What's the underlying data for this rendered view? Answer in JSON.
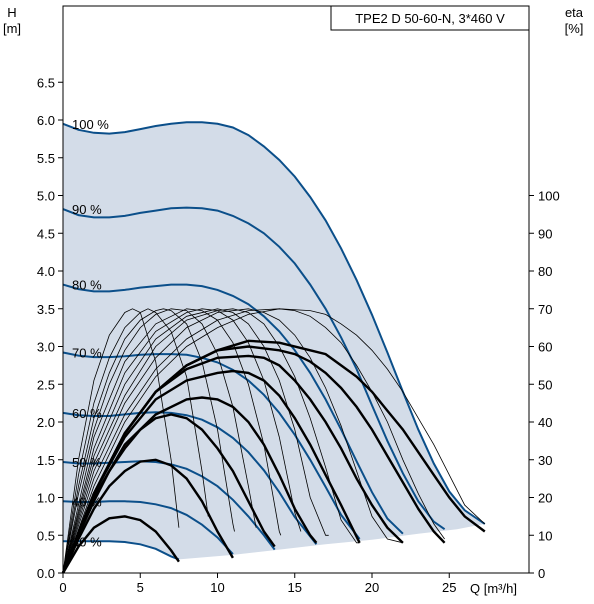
{
  "chart_data": {
    "type": "line",
    "title": "TPE2 D 50-60-N, 3*460 V",
    "xlabel": "Q [m³/h]",
    "ylabel_left_top": "H",
    "ylabel_left_unit": "[m]",
    "ylabel_right_top": "eta",
    "ylabel_right_unit": "[%]",
    "xlim": [
      0,
      30
    ],
    "ylim_left": [
      0,
      7.0
    ],
    "ylim_right": [
      0,
      140
    ],
    "x_ticks": [
      0,
      5,
      10,
      15,
      20,
      25
    ],
    "x_tick_labels": [
      "0",
      "5",
      "10",
      "15",
      "20",
      "25"
    ],
    "y_ticks_left": [
      0.0,
      0.5,
      1.0,
      1.5,
      2.0,
      2.5,
      3.0,
      3.5,
      4.0,
      4.5,
      5.0,
      5.5,
      6.0,
      6.5
    ],
    "y_tick_labels_left": [
      "0.0",
      "0.5",
      "1.0",
      "1.5",
      "2.0",
      "2.5",
      "3.0",
      "3.5",
      "4.0",
      "4.5",
      "5.0",
      "5.5",
      "6.0",
      "6.5"
    ],
    "y_ticks_right": [
      0,
      10,
      20,
      30,
      40,
      50,
      60,
      70,
      80,
      90,
      100
    ],
    "y_tick_labels_right": [
      "0",
      "10",
      "20",
      "30",
      "40",
      "50",
      "60",
      "70",
      "80",
      "90",
      "100"
    ],
    "grid": false,
    "colors": {
      "pump_curve": "#0b4f8a",
      "operating_area": "#d3dce8",
      "efficiency": "#000000",
      "frame": "#000000"
    },
    "operating_area_bottom": {
      "x": [
        7.5,
        11,
        14,
        17,
        20,
        23,
        25.5,
        27.3
      ],
      "y": [
        0.18,
        0.24,
        0.31,
        0.38,
        0.44,
        0.52,
        0.58,
        0.65
      ]
    },
    "pump_curves": [
      {
        "label": "100 %",
        "x": [
          0,
          1,
          2,
          3,
          4,
          5,
          6,
          7,
          8,
          9,
          10,
          11,
          12,
          13,
          14,
          15,
          16,
          17,
          18,
          19,
          20,
          21,
          22,
          23,
          24,
          25,
          26,
          27.3
        ],
        "y": [
          5.95,
          5.87,
          5.83,
          5.82,
          5.84,
          5.88,
          5.92,
          5.95,
          5.97,
          5.97,
          5.95,
          5.9,
          5.8,
          5.65,
          5.47,
          5.25,
          4.98,
          4.67,
          4.3,
          3.88,
          3.42,
          2.92,
          2.4,
          1.9,
          1.45,
          1.08,
          0.83,
          0.65
        ]
      },
      {
        "label": "90 %",
        "x": [
          0,
          1,
          2,
          3,
          4,
          5,
          6,
          7,
          8,
          9,
          10,
          11,
          12,
          13,
          14,
          15,
          16,
          17,
          18,
          19,
          20,
          21,
          22,
          23,
          24,
          24.7
        ],
        "y": [
          4.82,
          4.74,
          4.71,
          4.71,
          4.73,
          4.77,
          4.8,
          4.83,
          4.84,
          4.83,
          4.8,
          4.73,
          4.63,
          4.5,
          4.32,
          4.1,
          3.82,
          3.5,
          3.12,
          2.7,
          2.22,
          1.75,
          1.32,
          0.95,
          0.68,
          0.58
        ]
      },
      {
        "label": "80 %",
        "x": [
          0,
          1,
          2,
          3,
          4,
          5,
          6,
          7,
          8,
          9,
          10,
          11,
          12,
          13,
          14,
          15,
          16,
          17,
          18,
          19,
          20,
          21,
          22
        ],
        "y": [
          3.82,
          3.76,
          3.73,
          3.73,
          3.75,
          3.78,
          3.8,
          3.82,
          3.82,
          3.8,
          3.75,
          3.67,
          3.56,
          3.4,
          3.2,
          2.95,
          2.65,
          2.3,
          1.9,
          1.48,
          1.07,
          0.72,
          0.52
        ]
      },
      {
        "label": "70 %",
        "x": [
          0,
          1,
          2,
          3,
          4,
          5,
          6,
          7,
          8,
          9,
          10,
          11,
          12,
          13,
          14,
          15,
          16,
          17,
          18,
          19.2
        ],
        "y": [
          2.92,
          2.88,
          2.86,
          2.86,
          2.87,
          2.89,
          2.9,
          2.9,
          2.89,
          2.85,
          2.79,
          2.69,
          2.55,
          2.36,
          2.12,
          1.83,
          1.5,
          1.14,
          0.77,
          0.45
        ]
      },
      {
        "label": "60 %",
        "x": [
          0,
          1,
          2,
          3,
          4,
          5,
          6,
          7,
          8,
          9,
          10,
          11,
          12,
          13,
          14,
          15,
          16.4
        ],
        "y": [
          2.12,
          2.09,
          2.08,
          2.08,
          2.1,
          2.12,
          2.13,
          2.12,
          2.09,
          2.03,
          1.93,
          1.79,
          1.6,
          1.36,
          1.07,
          0.74,
          0.38
        ]
      },
      {
        "label": "50 %",
        "x": [
          0,
          1,
          2,
          3,
          4,
          5,
          6,
          7,
          8,
          9,
          10,
          11,
          12,
          13,
          13.7
        ],
        "y": [
          1.47,
          1.45,
          1.45,
          1.46,
          1.47,
          1.48,
          1.47,
          1.44,
          1.38,
          1.28,
          1.15,
          0.97,
          0.75,
          0.5,
          0.31
        ]
      },
      {
        "label": "40 %",
        "x": [
          0,
          1,
          2,
          3,
          4,
          5,
          6,
          7,
          8,
          9,
          10,
          11
        ],
        "y": [
          0.95,
          0.94,
          0.94,
          0.95,
          0.95,
          0.94,
          0.91,
          0.86,
          0.77,
          0.64,
          0.47,
          0.25
        ]
      },
      {
        "label": "30 %",
        "x": [
          0,
          1,
          2,
          3,
          4,
          5,
          6,
          7,
          7.5
        ],
        "y": [
          0.42,
          0.42,
          0.42,
          0.42,
          0.41,
          0.38,
          0.32,
          0.22,
          0.18
        ]
      }
    ],
    "efficiency_curves_thin": [
      {
        "x": [
          0,
          1,
          2,
          3,
          4,
          4.5,
          5,
          6,
          7,
          7.5
        ],
        "y": [
          0,
          30,
          51,
          63,
          69,
          70,
          69,
          56,
          30,
          12
        ]
      },
      {
        "x": [
          0,
          1,
          2,
          3,
          4,
          5,
          5.5,
          6,
          7,
          8,
          9,
          9.4
        ],
        "y": [
          0,
          26,
          45,
          57,
          65,
          69,
          70,
          69,
          64,
          52,
          27,
          15
        ]
      },
      {
        "x": [
          0,
          1,
          2,
          3,
          4,
          5,
          6,
          6.5,
          7,
          8,
          9,
          10,
          11,
          11.1
        ],
        "y": [
          0,
          23,
          41,
          53,
          62,
          67,
          69.5,
          70,
          69.5,
          66,
          56,
          38,
          13,
          11
        ]
      },
      {
        "x": [
          0,
          1,
          2,
          3,
          4,
          5,
          6,
          7,
          8,
          9,
          10,
          11,
          12,
          12.5
        ],
        "y": [
          0,
          21,
          38,
          50,
          59,
          65,
          68.5,
          70,
          69.5,
          66,
          58,
          44,
          23,
          12
        ]
      },
      {
        "x": [
          0,
          2,
          4,
          6,
          8,
          9,
          10,
          11,
          12,
          13,
          14,
          14.1
        ],
        "y": [
          0,
          36,
          56,
          66,
          70,
          69.5,
          67,
          61,
          50,
          34,
          11,
          10
        ]
      },
      {
        "x": [
          0,
          2,
          4,
          6,
          8,
          9,
          10,
          11,
          12,
          13,
          14,
          15,
          15.4
        ],
        "y": [
          0,
          33,
          53,
          64,
          69,
          70,
          69.5,
          67,
          61,
          51,
          36,
          16,
          11
        ]
      },
      {
        "x": [
          0,
          2,
          4,
          6,
          8,
          10,
          11,
          12,
          13,
          14,
          15,
          16,
          17,
          17.2
        ],
        "y": [
          0,
          31,
          50,
          62,
          68,
          70,
          69,
          66,
          60,
          51,
          38,
          20,
          10,
          10
        ]
      },
      {
        "x": [
          0,
          2,
          4,
          6,
          8,
          10,
          11,
          12,
          13,
          14,
          15,
          16,
          17,
          18,
          19,
          19.2
        ],
        "y": [
          0,
          29,
          47,
          60,
          67,
          69.5,
          70,
          69,
          66,
          60,
          52,
          41,
          28,
          14,
          8,
          8
        ]
      },
      {
        "x": [
          0,
          2,
          4,
          6,
          8,
          10,
          12,
          13,
          14,
          15,
          16,
          17,
          18,
          19,
          20,
          21,
          22
        ],
        "y": [
          0,
          27,
          45,
          57,
          65,
          69,
          70,
          69,
          67,
          63,
          57,
          49,
          39,
          27,
          15,
          9,
          8
        ]
      },
      {
        "x": [
          0,
          2,
          4,
          6,
          8,
          10,
          12,
          14,
          15,
          16,
          17,
          18,
          19,
          20,
          21,
          22,
          23,
          24,
          24.7
        ],
        "y": [
          0,
          25,
          42,
          54,
          62,
          67,
          69.5,
          70,
          69.5,
          68,
          65,
          61,
          55,
          48,
          40,
          30,
          21,
          13,
          9
        ]
      },
      {
        "x": [
          0,
          2,
          4,
          6,
          8,
          10,
          12,
          14,
          16,
          17,
          18,
          19,
          20,
          21,
          22,
          23,
          24,
          25,
          26,
          27.3
        ],
        "y": [
          0,
          23,
          40,
          52,
          60,
          65,
          68.5,
          70,
          69.5,
          68.5,
          66,
          63,
          59,
          54,
          48,
          41,
          34,
          26,
          18,
          13
        ]
      }
    ],
    "efficiency_curves_bold": [
      {
        "x": [
          0,
          1,
          2,
          3,
          4,
          5,
          6,
          7,
          7.5
        ],
        "y": [
          0,
          7,
          12,
          14.5,
          15,
          14,
          11,
          6,
          3
        ]
      },
      {
        "x": [
          0,
          1,
          2,
          3,
          4,
          5,
          6,
          7,
          8,
          9,
          10,
          11
        ],
        "y": [
          0,
          9,
          17,
          23,
          27,
          29.5,
          30,
          28.5,
          25,
          19,
          11,
          4
        ]
      },
      {
        "x": [
          0,
          1,
          2,
          3,
          4,
          5,
          6,
          7,
          8,
          9,
          10,
          11,
          12,
          13,
          13.7
        ],
        "y": [
          0,
          10,
          19,
          27,
          33,
          38,
          41,
          42,
          41,
          38,
          33,
          27,
          19,
          11,
          7
        ]
      },
      {
        "x": [
          0,
          2,
          4,
          6,
          8,
          9,
          10,
          11,
          12,
          13,
          14,
          15,
          16,
          16.4
        ],
        "y": [
          0,
          20,
          34,
          42,
          46,
          46.5,
          46,
          44,
          40,
          34,
          26,
          17,
          10,
          8
        ]
      },
      {
        "x": [
          0,
          2,
          4,
          6,
          8,
          10,
          11,
          12,
          13,
          14,
          15,
          16,
          17,
          18,
          19.2
        ],
        "y": [
          0,
          21,
          36,
          46,
          51,
          53,
          53.5,
          53,
          51,
          47,
          41,
          34,
          26,
          18,
          8
        ]
      },
      {
        "x": [
          0,
          2,
          4,
          6,
          8,
          10,
          12,
          13,
          14,
          15,
          16,
          17,
          18,
          19,
          20,
          21,
          22
        ],
        "y": [
          0,
          21,
          37,
          48,
          54,
          57,
          57.5,
          57,
          55,
          51,
          46,
          40,
          33,
          25,
          18,
          12,
          8
        ]
      },
      {
        "x": [
          0,
          2,
          4,
          6,
          8,
          10,
          12,
          14,
          15,
          16,
          17,
          18,
          19,
          20,
          21,
          22,
          23,
          24,
          24.7
        ],
        "y": [
          0,
          21,
          37,
          48,
          55,
          59,
          60,
          59,
          58,
          56,
          53,
          49,
          44,
          38,
          31,
          24,
          17,
          11,
          8
        ]
      },
      {
        "x": [
          0,
          2,
          4,
          6,
          8,
          10,
          12,
          14,
          16,
          17,
          18,
          19,
          20,
          21,
          22,
          23,
          24,
          25,
          26,
          27.3
        ],
        "y": [
          0,
          21,
          37,
          48,
          55,
          59,
          61.5,
          61,
          59,
          58,
          55,
          52,
          48,
          43,
          38,
          32,
          26,
          20,
          15,
          11
        ]
      }
    ]
  }
}
